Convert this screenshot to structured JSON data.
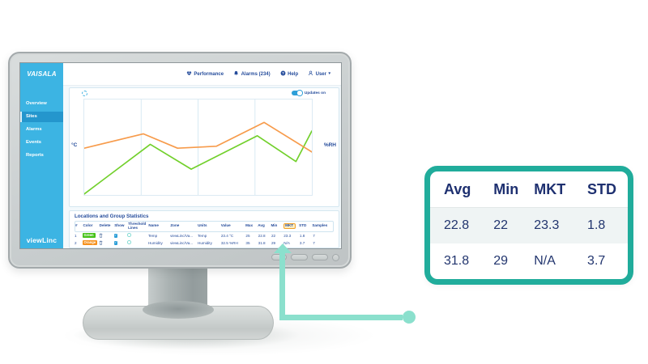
{
  "colors": {
    "sidebar_blue": "#3cb4e3",
    "sidebar_active": "#2496cd",
    "navy_text": "#264d9c",
    "navy_dark": "#1e3070",
    "toggle_blue": "#2d9fd8",
    "panel_border": "#d5e7f0",
    "teal_callout": "#20ac9b",
    "mint": "#8be0cd",
    "mkt_border": "#f0a028",
    "mkt_bg": "#fcedc3",
    "green_series": "#72d02c",
    "orange_series": "#f79b4b"
  },
  "monitor": {
    "app": {
      "brand": "VAISALA",
      "product": "viewLinc",
      "top_nav": [
        {
          "label": "Performance",
          "icon": "heart-pulse-icon"
        },
        {
          "label": "Alarms (234)",
          "icon": "bell-icon"
        },
        {
          "label": "Help",
          "icon": "question-circle-icon"
        },
        {
          "label": "User",
          "icon": "user-icon"
        }
      ],
      "sidebar": {
        "items": [
          {
            "label": "Overview",
            "active": false
          },
          {
            "label": "Sites",
            "active": true
          },
          {
            "label": "Alarms",
            "active": false
          },
          {
            "label": "Events",
            "active": false
          },
          {
            "label": "Reports",
            "active": false
          }
        ]
      },
      "chart_panel": {
        "updates_label": "Updates on",
        "left_axis": "°C",
        "right_axis": "%RH"
      },
      "stats_panel": {
        "title": "Locations and Group Statistics",
        "columns": [
          {
            "key": "num",
            "label": "#"
          },
          {
            "key": "color",
            "label": "Color"
          },
          {
            "key": "delete",
            "label": "Delete"
          },
          {
            "key": "show",
            "label": "Show"
          },
          {
            "key": "threshold",
            "label": "Threshold Lines"
          },
          {
            "key": "name",
            "label": "Name"
          },
          {
            "key": "zone",
            "label": "Zone"
          },
          {
            "key": "units",
            "label": "Units"
          },
          {
            "key": "value",
            "label": "Value"
          },
          {
            "key": "max",
            "label": "Max"
          },
          {
            "key": "avg",
            "label": "Avg"
          },
          {
            "key": "min",
            "label": "Min"
          },
          {
            "key": "mkt",
            "label": "MKT",
            "highlight": true
          },
          {
            "key": "std",
            "label": "STD"
          },
          {
            "key": "samples",
            "label": "Samples"
          }
        ],
        "rows": [
          {
            "num": "1",
            "color": {
              "label": "Green",
              "hex": "#44c218"
            },
            "delete_icon": "trash-icon",
            "show_checked": true,
            "threshold_checked": false,
            "name": "Temp",
            "zone": "viewLinc/Va...",
            "units": "Temp",
            "value": "23.4 °C",
            "max": "25",
            "avg": "22.8",
            "min": "22",
            "mkt": "23.3",
            "std": "1.8",
            "samples": "7"
          },
          {
            "num": "2",
            "color": {
              "label": "Orange",
              "hex": "#f6921e"
            },
            "delete_icon": "trash-icon",
            "show_checked": true,
            "threshold_checked": false,
            "name": "Humidity",
            "zone": "viewLinc/Va...",
            "units": "Humidity",
            "value": "32.5 %RH",
            "max": "35",
            "avg": "31.8",
            "min": "29",
            "mkt": "N/A",
            "std": "3.7",
            "samples": "7"
          }
        ]
      }
    }
  },
  "callout": {
    "headers": [
      "Avg",
      "Min",
      "MKT",
      "STD"
    ],
    "rows": [
      [
        "22.8",
        "22",
        "23.3",
        "1.8"
      ],
      [
        "31.8",
        "29",
        "N/A",
        "3.7"
      ]
    ]
  },
  "chart_data": {
    "type": "line",
    "title": "",
    "left_axis_label": "°C",
    "right_axis_label": "%RH",
    "x_gridlines_percent": [
      25,
      50,
      75
    ],
    "legend_position": "none",
    "axes_note": "no numeric tick labels visible; point y-values are percent from top of plot area",
    "series": [
      {
        "name": "Temp",
        "color": "#72d02c",
        "points_percent": [
          [
            0,
            99
          ],
          [
            29,
            47
          ],
          [
            47,
            73
          ],
          [
            76,
            38
          ],
          [
            93,
            65
          ],
          [
            100,
            33
          ]
        ]
      },
      {
        "name": "Humidity",
        "color": "#f79b4b",
        "points_percent": [
          [
            0,
            51
          ],
          [
            26,
            36
          ],
          [
            41,
            51
          ],
          [
            58,
            49
          ],
          [
            79,
            24
          ],
          [
            100,
            55
          ]
        ]
      }
    ]
  },
  "icons": {
    "check_glyph": "✓",
    "chevron_glyph": "▾"
  }
}
